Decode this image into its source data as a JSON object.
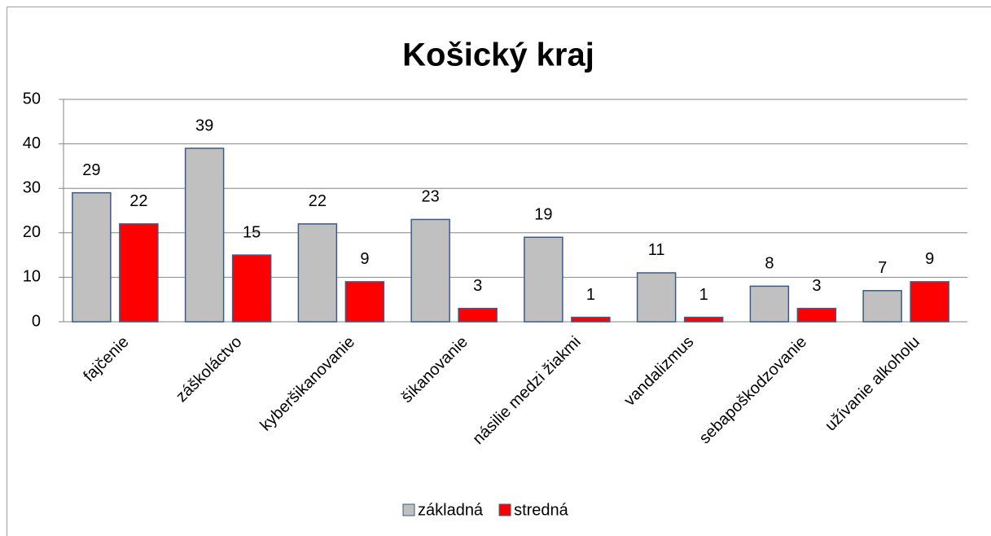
{
  "chart_data": {
    "type": "bar",
    "title": "Košický kraj",
    "categories": [
      "fajčenie",
      "záškoláctvo",
      "kyberšikanovanie",
      "šikanovanie",
      "násilie medzi žiakmi",
      "vandalizmus",
      "sebapoškodzovanie",
      "užívanie alkoholu"
    ],
    "series": [
      {
        "name": "základná",
        "color": "#c0c0c0",
        "values": [
          29,
          39,
          22,
          23,
          19,
          11,
          8,
          7
        ]
      },
      {
        "name": "stredná",
        "color": "#ff0000",
        "values": [
          22,
          15,
          9,
          3,
          1,
          1,
          3,
          9
        ]
      }
    ],
    "ylim": [
      0,
      50
    ],
    "yticks": [
      0,
      10,
      20,
      30,
      40,
      50
    ],
    "grid": true,
    "legend": "bottom"
  }
}
